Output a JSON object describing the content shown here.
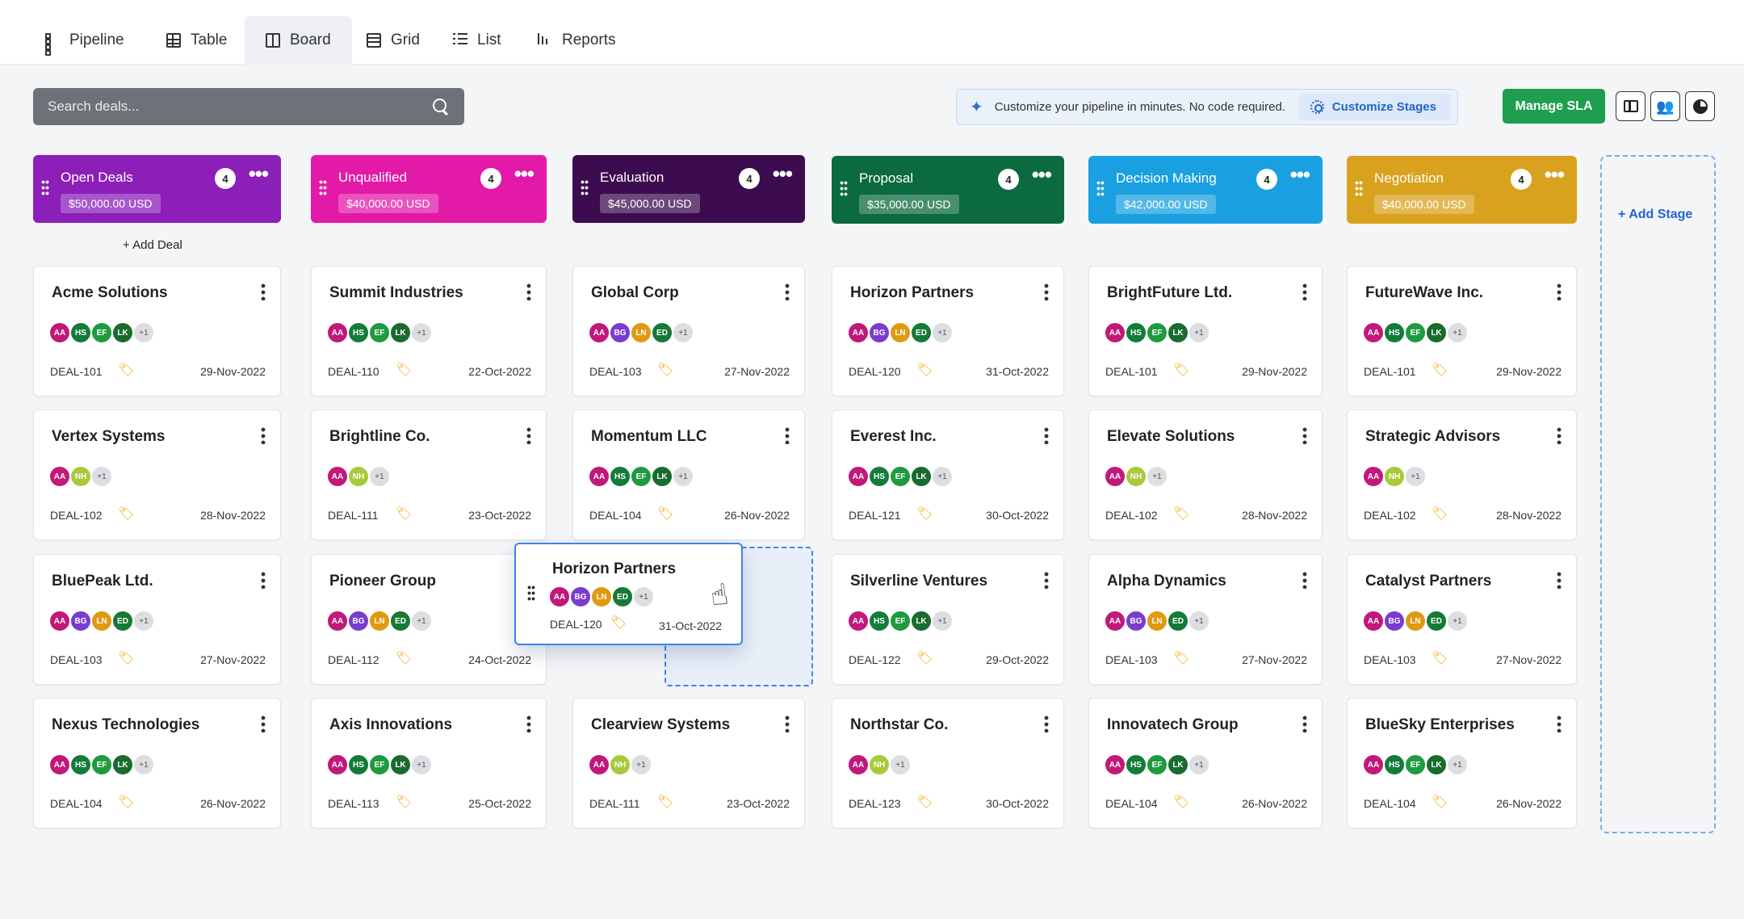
{
  "tabs": [
    {
      "label": "Pipeline",
      "icon": "pipeline-icon"
    },
    {
      "label": "Table",
      "icon": "table-icon"
    },
    {
      "label": "Board",
      "icon": "board-icon",
      "active": true
    },
    {
      "label": "Grid",
      "icon": "grid-icon"
    },
    {
      "label": "List",
      "icon": "list-icon"
    },
    {
      "label": "Reports",
      "icon": "reports-icon"
    }
  ],
  "search": {
    "placeholder": "Search deals..."
  },
  "banner": {
    "text": "Customize your pipeline in minutes. No code required.",
    "button_label": "Customize Stages"
  },
  "toolbar": {
    "manage_sla_label": "Manage SLA"
  },
  "add_deal_label": "+ Add Deal",
  "add_stage_label": "+ Add Stage",
  "avatar_colors": {
    "AA": "#c2187a",
    "HS": "#137c3b",
    "EF": "#1f9a3f",
    "LK": "#1a6b2e",
    "BG": "#7a3ccf",
    "LN": "#e09a12",
    "ED": "#167a36",
    "NH": "#a8c93a"
  },
  "columns": [
    {
      "name": "Open Deals",
      "count": "4",
      "amount": "$50,000.00 USD",
      "color": "#8b1fb8",
      "cards": [
        {
          "title": "Acme Solutions",
          "avatars": [
            "AA",
            "HS",
            "EF",
            "LK"
          ],
          "more": "+1",
          "id": "DEAL-101",
          "date": "29-Nov-2022"
        },
        {
          "title": "Vertex Systems",
          "avatars": [
            "AA",
            "NH"
          ],
          "more": "+1",
          "id": "DEAL-102",
          "date": "28-Nov-2022"
        },
        {
          "title": "BluePeak Ltd.",
          "avatars": [
            "AA",
            "BG",
            "LN",
            "ED"
          ],
          "more": "+1",
          "id": "DEAL-103",
          "date": "27-Nov-2022"
        },
        {
          "title": "Nexus Technologies",
          "avatars": [
            "AA",
            "HS",
            "EF",
            "LK"
          ],
          "more": "+1",
          "id": "DEAL-104",
          "date": "26-Nov-2022"
        }
      ]
    },
    {
      "name": "Unqualified",
      "count": "4",
      "amount": "$40,000.00 USD",
      "color": "#e21aa7",
      "cards": [
        {
          "title": "Summit Industries",
          "avatars": [
            "AA",
            "HS",
            "EF",
            "LK"
          ],
          "more": "+1",
          "id": "DEAL-110",
          "date": "22-Oct-2022"
        },
        {
          "title": "Brightline Co.",
          "avatars": [
            "AA",
            "NH"
          ],
          "more": "+1",
          "id": "DEAL-111",
          "date": "23-Oct-2022"
        },
        {
          "title": "Pioneer Group",
          "avatars": [
            "AA",
            "BG",
            "LN",
            "ED"
          ],
          "more": "+1",
          "id": "DEAL-112",
          "date": "24-Oct-2022"
        },
        {
          "title": "Axis Innovations",
          "avatars": [
            "AA",
            "HS",
            "EF",
            "LK"
          ],
          "more": "+1",
          "id": "DEAL-113",
          "date": "25-Oct-2022"
        }
      ]
    },
    {
      "name": "Evaluation",
      "count": "4",
      "amount": "$45,000.00 USD",
      "color": "#3d0b4f",
      "cards": [
        {
          "title": "Global Corp",
          "avatars": [
            "AA",
            "BG",
            "LN",
            "ED"
          ],
          "more": "+1",
          "id": "DEAL-103",
          "date": "27-Nov-2022"
        },
        {
          "title": "Momentum LLC",
          "avatars": [
            "AA",
            "HS",
            "EF",
            "LK"
          ],
          "more": "+1",
          "id": "DEAL-104",
          "date": "26-Nov-2022"
        },
        null,
        {
          "title": "Clearview Systems",
          "avatars": [
            "AA",
            "NH"
          ],
          "more": "+1",
          "id": "DEAL-111",
          "date": "23-Oct-2022"
        }
      ]
    },
    {
      "name": "Proposal",
      "count": "4",
      "amount": "$35,000.00 USD",
      "color": "#0c6a3f",
      "cards": [
        {
          "title": "Horizon Partners",
          "avatars": [
            "AA",
            "BG",
            "LN",
            "ED"
          ],
          "more": "+1",
          "id": "DEAL-120",
          "date": "31-Oct-2022"
        },
        {
          "title": "Everest Inc.",
          "avatars": [
            "AA",
            "HS",
            "EF",
            "LK"
          ],
          "more": "+1",
          "id": "DEAL-121",
          "date": "30-Oct-2022"
        },
        {
          "title": "Silverline Ventures",
          "avatars": [
            "AA",
            "HS",
            "EF",
            "LK"
          ],
          "more": "+1",
          "id": "DEAL-122",
          "date": "29-Oct-2022"
        },
        {
          "title": "Northstar Co.",
          "avatars": [
            "AA",
            "NH"
          ],
          "more": "+1",
          "id": "DEAL-123",
          "date": "30-Oct-2022"
        }
      ]
    },
    {
      "name": "Decision Making",
      "count": "4",
      "amount": "$42,000.00 USD",
      "color": "#1aa0e0",
      "cards": [
        {
          "title": "BrightFuture Ltd.",
          "avatars": [
            "AA",
            "HS",
            "EF",
            "LK"
          ],
          "more": "+1",
          "id": "DEAL-101",
          "date": "29-Nov-2022"
        },
        {
          "title": "Elevate Solutions",
          "avatars": [
            "AA",
            "NH"
          ],
          "more": "+1",
          "id": "DEAL-102",
          "date": "28-Nov-2022"
        },
        {
          "title": "Alpha Dynamics",
          "avatars": [
            "AA",
            "BG",
            "LN",
            "ED"
          ],
          "more": "+1",
          "id": "DEAL-103",
          "date": "27-Nov-2022"
        },
        {
          "title": "Innovatech Group",
          "avatars": [
            "AA",
            "HS",
            "EF",
            "LK"
          ],
          "more": "+1",
          "id": "DEAL-104",
          "date": "26-Nov-2022"
        }
      ]
    },
    {
      "name": "Negotiation",
      "count": "4",
      "amount": "$40,000.00 USD",
      "color": "#d9a21e",
      "cards": [
        {
          "title": "FutureWave Inc.",
          "avatars": [
            "AA",
            "HS",
            "EF",
            "LK"
          ],
          "more": "+1",
          "id": "DEAL-101",
          "date": "29-Nov-2022"
        },
        {
          "title": "Strategic Advisors",
          "avatars": [
            "AA",
            "NH"
          ],
          "more": "+1",
          "id": "DEAL-102",
          "date": "28-Nov-2022"
        },
        {
          "title": "Catalyst Partners",
          "avatars": [
            "AA",
            "BG",
            "LN",
            "ED"
          ],
          "more": "+1",
          "id": "DEAL-103",
          "date": "27-Nov-2022"
        },
        {
          "title": "BlueSky Enterprises",
          "avatars": [
            "AA",
            "HS",
            "EF",
            "LK"
          ],
          "more": "+1",
          "id": "DEAL-104",
          "date": "26-Nov-2022"
        }
      ]
    }
  ],
  "dragging_card": {
    "title": "Horizon Partners",
    "avatars": [
      "AA",
      "BG",
      "LN",
      "ED"
    ],
    "more": "+1",
    "id": "DEAL-120",
    "date": "31-Oct-2022"
  }
}
